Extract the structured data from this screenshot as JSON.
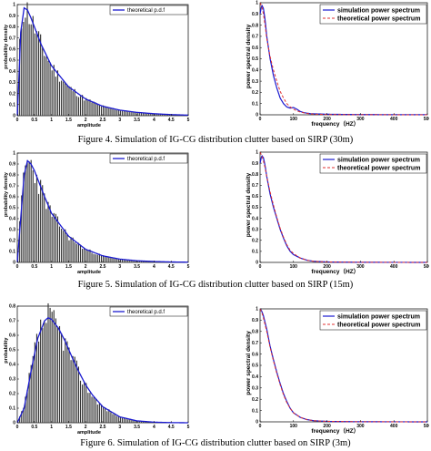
{
  "captions": [
    "Figure 4.   Simulation of IG-CG distribution clutter based on SIRP (30m)",
    "Figure 5.   Simulation of IG-CG distribution clutter based on SIRP (15m)",
    "Figure 6.   Simulation of IG-CG distribution clutter based on SIRP (3m)"
  ],
  "colors": {
    "theory_pdf": "#1a1ad0",
    "sim_spectrum": "#1a1ad0",
    "theory_spectrum": "#e03030",
    "bars": "#333333"
  },
  "chart_data": [
    {
      "type": "bar",
      "figure": "Figure 4 (left)",
      "xlabel": "amplitude",
      "ylabel": "probability density",
      "legend": [
        "theoretical p.d.f"
      ],
      "xlim": [
        0,
        5
      ],
      "ylim": [
        0,
        1
      ],
      "xticks": [
        "0",
        "0.5",
        "1",
        "1.5",
        "2",
        "2.5",
        "3",
        "3.5",
        "4",
        "4.5",
        "5"
      ],
      "yticks": [
        "0",
        "0.1",
        "0.2",
        "0.3",
        "0.4",
        "0.5",
        "0.6",
        "0.7",
        "0.8",
        "0.9",
        "1"
      ],
      "pdf_x": [
        0,
        0.05,
        0.1,
        0.2,
        0.3,
        0.4,
        0.5,
        0.7,
        1.0,
        1.5,
        2.0,
        2.5,
        3.0,
        3.5,
        4.0,
        4.5,
        5.0
      ],
      "pdf_y": [
        0,
        0.35,
        0.75,
        0.97,
        0.95,
        0.88,
        0.8,
        0.64,
        0.45,
        0.26,
        0.15,
        0.085,
        0.05,
        0.03,
        0.018,
        0.01,
        0.005
      ]
    },
    {
      "type": "line",
      "figure": "Figure 4 (right)",
      "xlabel": "frequency（HZ）",
      "ylabel": "power spectral density",
      "legend": [
        "simulation power spectrum",
        "theoretical power spectrum"
      ],
      "xlim": [
        0,
        500
      ],
      "ylim": [
        0,
        1
      ],
      "xticks": [
        "0",
        "100",
        "200",
        "300",
        "400",
        "500"
      ],
      "yticks": [
        "0",
        "0.1",
        "0.2",
        "0.3",
        "0.4",
        "0.5",
        "0.6",
        "0.7",
        "0.8",
        "0.9",
        "1"
      ],
      "series": [
        {
          "name": "simulation power spectrum",
          "x": [
            0,
            5,
            10,
            15,
            20,
            30,
            40,
            50,
            60,
            70,
            80,
            90,
            100,
            110,
            120,
            130,
            150,
            200,
            300,
            500
          ],
          "y": [
            0.9,
            0.98,
            0.95,
            0.85,
            0.7,
            0.5,
            0.35,
            0.24,
            0.15,
            0.1,
            0.07,
            0.06,
            0.065,
            0.05,
            0.03,
            0.02,
            0.01,
            0.005,
            0.002,
            0.001
          ]
        },
        {
          "name": "theoretical power spectrum",
          "x": [
            0,
            5,
            10,
            15,
            20,
            30,
            40,
            50,
            60,
            70,
            80,
            90,
            100,
            110,
            120,
            140,
            160,
            200,
            300,
            500
          ],
          "y": [
            1,
            0.97,
            0.9,
            0.8,
            0.68,
            0.52,
            0.4,
            0.3,
            0.21,
            0.15,
            0.1,
            0.07,
            0.05,
            0.035,
            0.025,
            0.012,
            0.006,
            0.002,
            0.001,
            0
          ]
        }
      ]
    },
    {
      "type": "bar",
      "figure": "Figure 5 (left)",
      "xlabel": "amplitude",
      "ylabel": "probability density",
      "legend": [
        "theoretical p.d.f"
      ],
      "xlim": [
        0,
        5
      ],
      "ylim": [
        0,
        1
      ],
      "xticks": [
        "0",
        "0.5",
        "1",
        "1.5",
        "2",
        "2.5",
        "3",
        "3.5",
        "4",
        "4.5",
        "5"
      ],
      "yticks": [
        "0",
        "0.1",
        "0.2",
        "0.3",
        "0.4",
        "0.5",
        "0.6",
        "0.7",
        "0.8",
        "0.9",
        "1"
      ],
      "pdf_x": [
        0,
        0.1,
        0.2,
        0.3,
        0.4,
        0.5,
        0.6,
        0.8,
        1.0,
        1.5,
        2.0,
        2.5,
        3.0,
        3.5,
        4.0,
        4.5,
        5.0
      ],
      "pdf_y": [
        0,
        0.4,
        0.8,
        0.93,
        0.9,
        0.84,
        0.76,
        0.6,
        0.45,
        0.24,
        0.12,
        0.06,
        0.03,
        0.015,
        0.008,
        0.004,
        0.002
      ]
    },
    {
      "type": "line",
      "figure": "Figure 5 (right)",
      "xlabel": "frequency（HZ）",
      "ylabel": "power spectral density",
      "legend": [
        "simulation power spectrum",
        "theoretical power spectrum"
      ],
      "xlim": [
        0,
        500
      ],
      "ylim": [
        0,
        1
      ],
      "xticks": [
        "0",
        "100",
        "200",
        "300",
        "400",
        "500"
      ],
      "yticks": [
        "0",
        "0.1",
        "0.2",
        "0.3",
        "0.4",
        "0.5",
        "0.6",
        "0.7",
        "0.8",
        "0.9",
        "1"
      ],
      "series": [
        {
          "name": "simulation power spectrum",
          "x": [
            0,
            5,
            10,
            15,
            20,
            30,
            40,
            50,
            60,
            70,
            80,
            90,
            100,
            120,
            140,
            160,
            200,
            300,
            500
          ],
          "y": [
            0.9,
            0.97,
            0.95,
            0.88,
            0.78,
            0.62,
            0.5,
            0.4,
            0.3,
            0.22,
            0.15,
            0.1,
            0.07,
            0.04,
            0.02,
            0.01,
            0.004,
            0.001,
            0
          ]
        },
        {
          "name": "theoretical power spectrum",
          "x": [
            0,
            5,
            10,
            15,
            20,
            30,
            40,
            50,
            60,
            70,
            80,
            90,
            100,
            120,
            140,
            160,
            200,
            300,
            500
          ],
          "y": [
            1,
            0.97,
            0.92,
            0.86,
            0.78,
            0.64,
            0.52,
            0.41,
            0.31,
            0.23,
            0.16,
            0.11,
            0.08,
            0.04,
            0.02,
            0.01,
            0.004,
            0.001,
            0
          ]
        }
      ]
    },
    {
      "type": "bar",
      "figure": "Figure 6 (left)",
      "xlabel": "amplitude",
      "ylabel": "probability",
      "legend": [
        "theoretical p.d.f"
      ],
      "xlim": [
        0,
        5
      ],
      "ylim": [
        0,
        0.8
      ],
      "xticks": [
        "0",
        "0.5",
        "1",
        "1.5",
        "2",
        "2.5",
        "3",
        "3.5",
        "4",
        "4.5",
        "5"
      ],
      "yticks": [
        "0",
        "0.1",
        "0.2",
        "0.3",
        "0.4",
        "0.5",
        "0.6",
        "0.7",
        "0.8"
      ],
      "pdf_x": [
        0,
        0.2,
        0.4,
        0.6,
        0.8,
        0.9,
        1.0,
        1.2,
        1.4,
        1.6,
        1.8,
        2.0,
        2.2,
        2.5,
        3.0,
        3.5,
        4.0,
        4.5,
        5.0
      ],
      "pdf_y": [
        0,
        0.1,
        0.35,
        0.58,
        0.7,
        0.72,
        0.71,
        0.65,
        0.56,
        0.45,
        0.35,
        0.26,
        0.19,
        0.11,
        0.04,
        0.013,
        0.004,
        0.001,
        0
      ]
    },
    {
      "type": "line",
      "figure": "Figure 6 (right)",
      "xlabel": "frequency（HZ）",
      "ylabel": "power spectral density",
      "legend": [
        "simulation power spectrum",
        "theoretical power spectrum"
      ],
      "xlim": [
        0,
        500
      ],
      "ylim": [
        0,
        1
      ],
      "xticks": [
        "0",
        "100",
        "200",
        "300",
        "400",
        "500"
      ],
      "yticks": [
        "0",
        "0.1",
        "0.2",
        "0.3",
        "0.4",
        "0.5",
        "0.6",
        "0.7",
        "0.8",
        "0.9",
        "1"
      ],
      "series": [
        {
          "name": "simulation power spectrum",
          "x": [
            0,
            5,
            10,
            20,
            30,
            40,
            50,
            60,
            70,
            80,
            90,
            100,
            120,
            140,
            160,
            200,
            300,
            500
          ],
          "y": [
            1,
            0.98,
            0.94,
            0.82,
            0.67,
            0.55,
            0.44,
            0.34,
            0.25,
            0.18,
            0.12,
            0.08,
            0.04,
            0.02,
            0.01,
            0.004,
            0.001,
            0
          ]
        },
        {
          "name": "theoretical power spectrum",
          "x": [
            0,
            5,
            10,
            20,
            30,
            40,
            50,
            60,
            70,
            80,
            90,
            100,
            120,
            140,
            160,
            200,
            300,
            500
          ],
          "y": [
            1,
            0.97,
            0.92,
            0.8,
            0.66,
            0.54,
            0.43,
            0.33,
            0.24,
            0.17,
            0.12,
            0.08,
            0.04,
            0.02,
            0.01,
            0.004,
            0.001,
            0
          ]
        }
      ]
    }
  ]
}
